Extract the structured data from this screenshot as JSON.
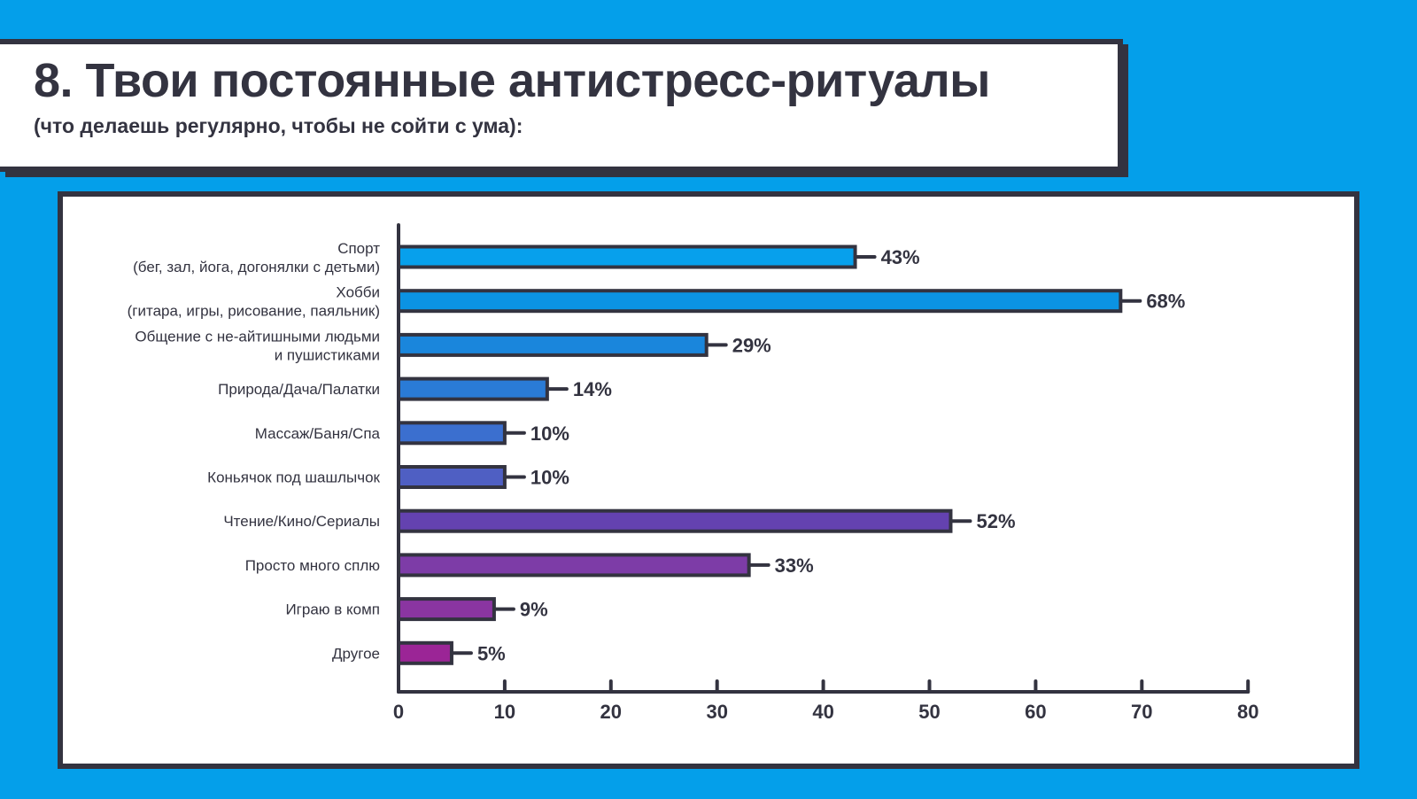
{
  "header": {
    "title": "8. Твои постоянные антистресс-ритуалы",
    "subtitle": "(что делаешь регулярно, чтобы не сойти с ума):"
  },
  "chart_data": {
    "type": "bar",
    "orientation": "horizontal",
    "categories": [
      [
        "Спорт",
        "(бег, зал, йога, догонялки с детьми)"
      ],
      [
        "Хобби",
        "(гитара, игры, рисование, паяльник)"
      ],
      [
        "Общение с не-айтишными людьми",
        "и пушистиками"
      ],
      [
        "Природа/Дача/Палатки"
      ],
      [
        "Массаж/Баня/Спа"
      ],
      [
        "Коньячок под шашлычок"
      ],
      [
        "Чтение/Кино/Сериалы"
      ],
      [
        "Просто много сплю"
      ],
      [
        "Играю в комп"
      ],
      [
        "Другое"
      ]
    ],
    "values": [
      43,
      68,
      29,
      14,
      10,
      10,
      52,
      33,
      9,
      5
    ],
    "value_labels": [
      "43%",
      "68%",
      "29%",
      "14%",
      "10%",
      "10%",
      "52%",
      "33%",
      "9%",
      "5%"
    ],
    "bar_colors": [
      "#07a0ec",
      "#0b93e3",
      "#1a86dc",
      "#2a7bd6",
      "#3b6fcf",
      "#4f5fc3",
      "#6442b0",
      "#7d3ca7",
      "#8a35a1",
      "#9b2596"
    ],
    "xlim": [
      0,
      80
    ],
    "xticks": [
      "0",
      "10",
      "20",
      "30",
      "40",
      "50",
      "60",
      "70",
      "80"
    ],
    "grid": false,
    "legend": "none"
  },
  "colors": {
    "background": "#049fea",
    "ink": "#333340",
    "card": "#ffffff"
  }
}
